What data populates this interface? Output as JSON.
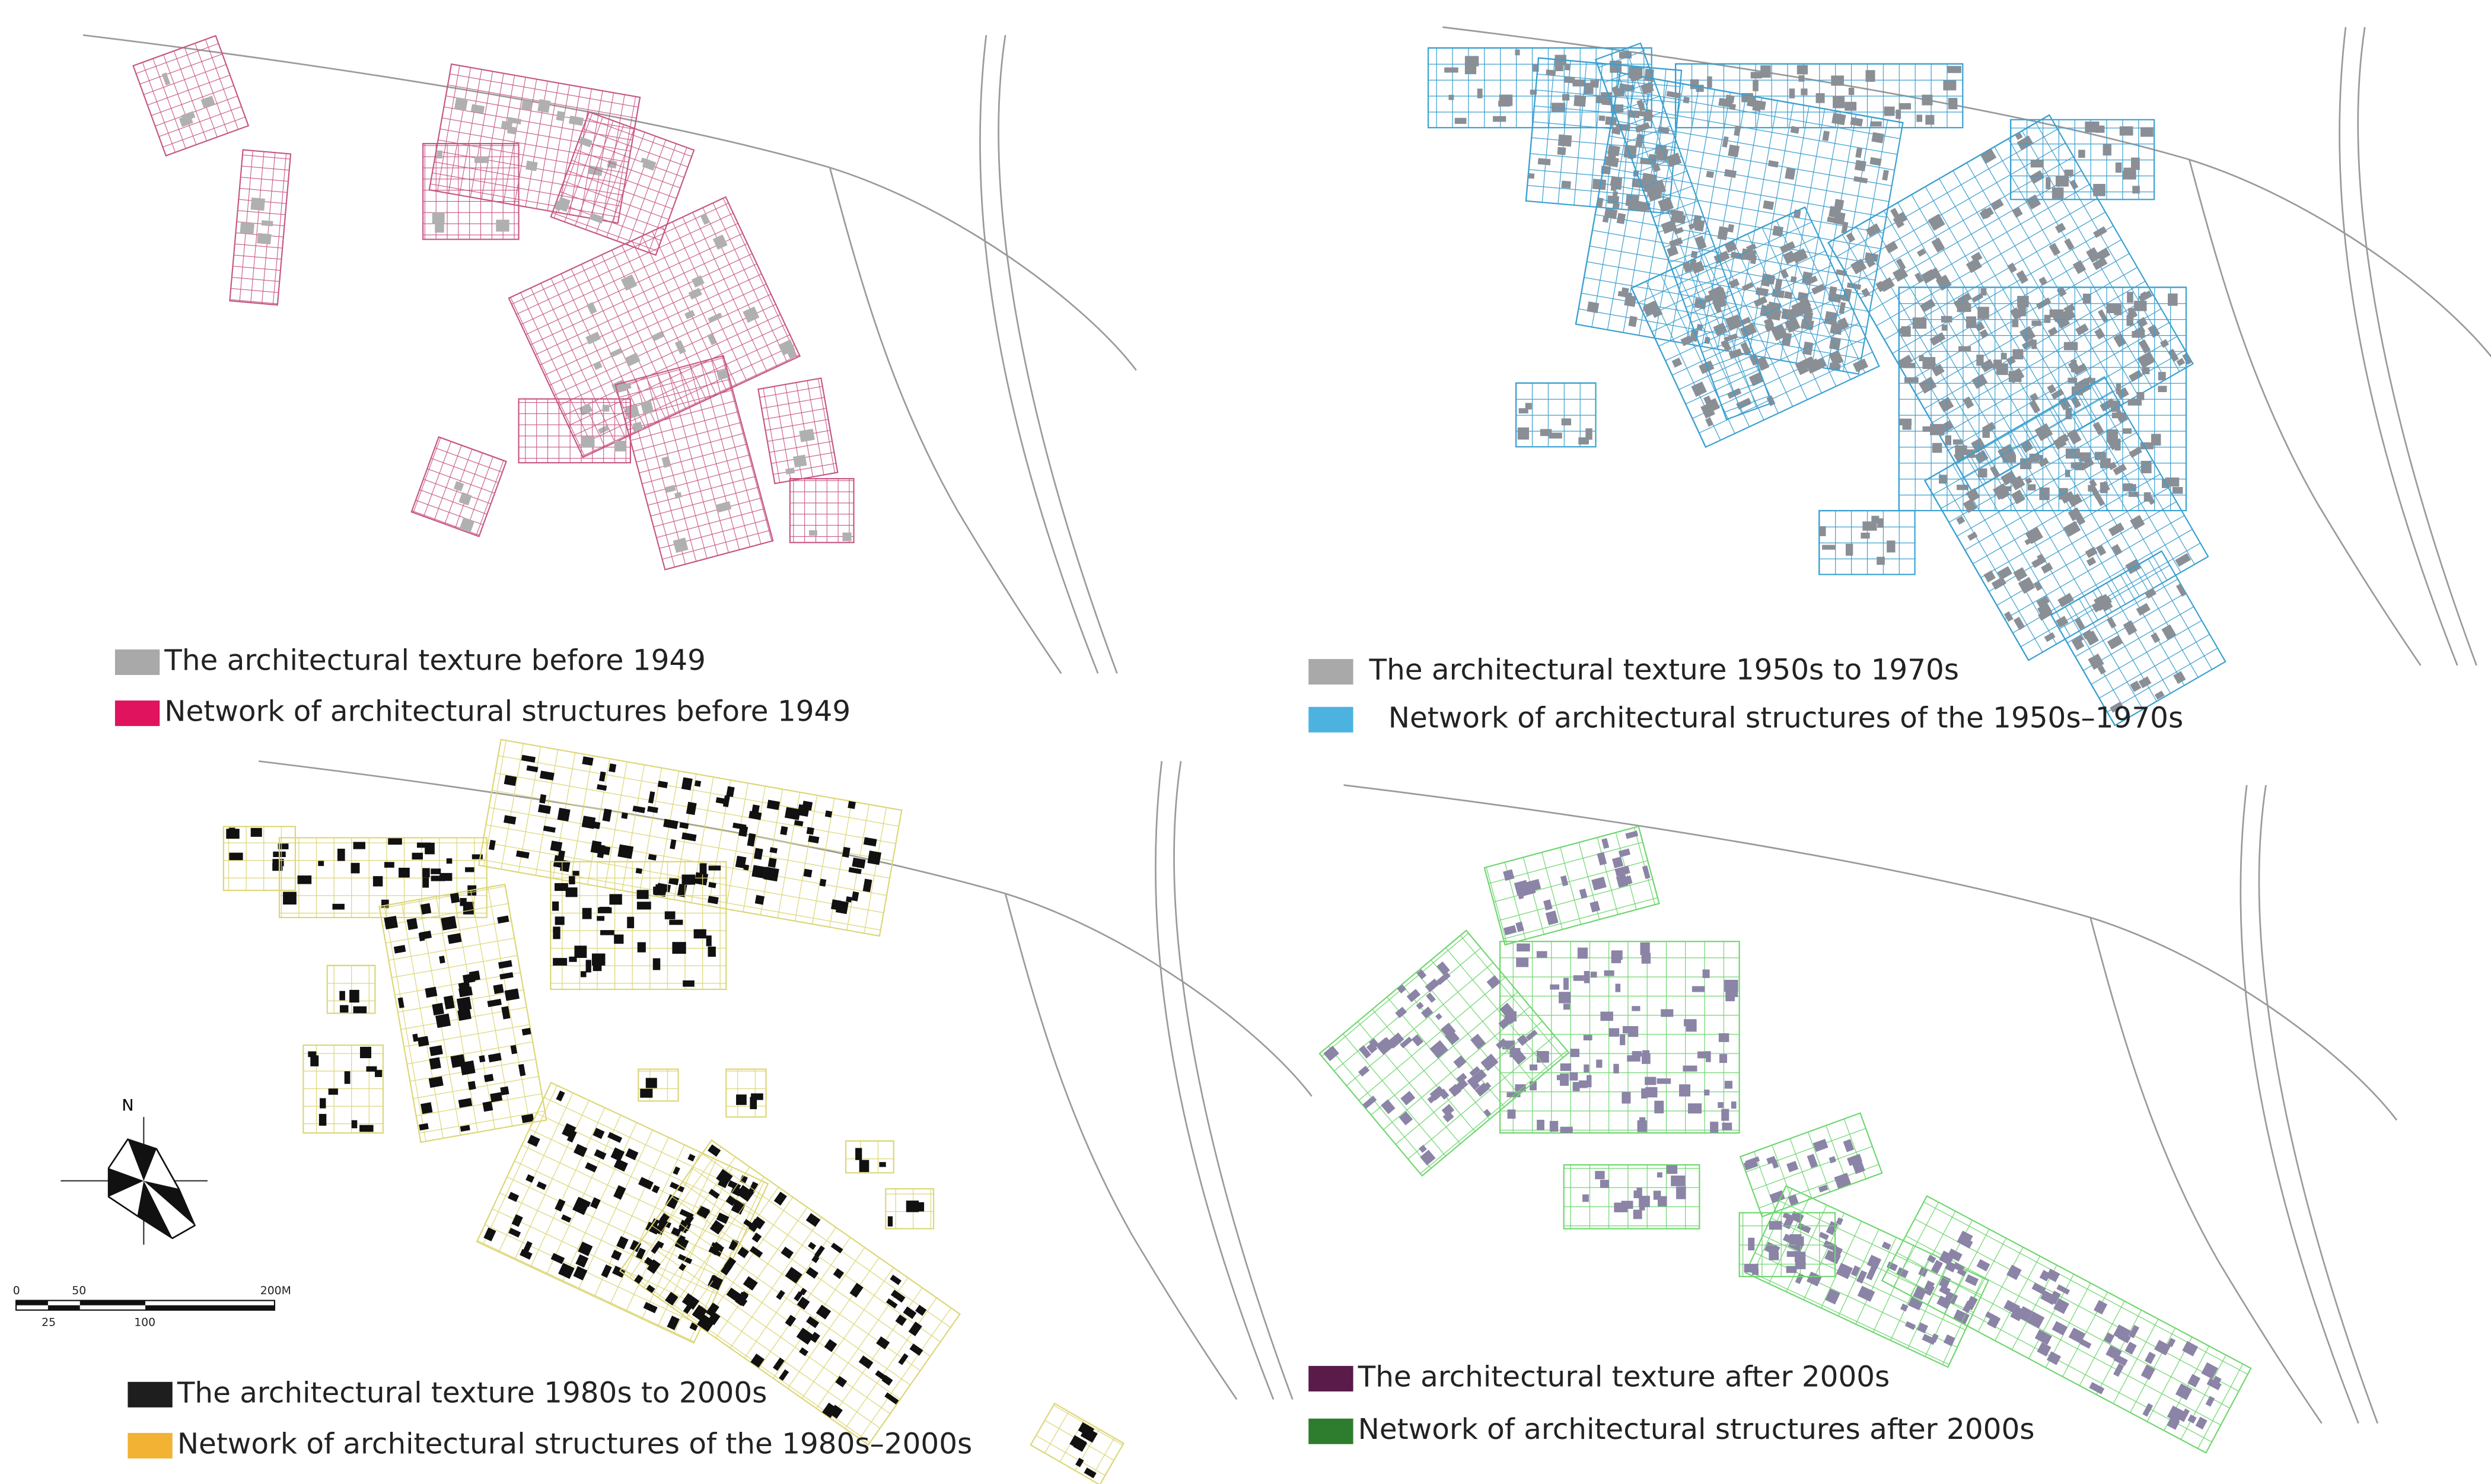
{
  "panels": [
    {
      "legend": [
        {
          "label": "The architectural texture before 1949",
          "color": "#a9a9a9"
        },
        {
          "label": "Network of architectural structures before 1949",
          "color": "#e0135f"
        }
      ]
    },
    {
      "legend": [
        {
          "label": "The architectural texture 1950s to 1970s",
          "color": "#a9a9a9"
        },
        {
          "label": "Network of architectural structures of the 1950s–1970s",
          "color": "#4cb3e0"
        }
      ]
    },
    {
      "legend": [
        {
          "label": "The architectural texture 1980s to 2000s",
          "color": "#1e1e1e"
        },
        {
          "label": "Network of architectural structures of the 1980s–2000s",
          "color": "#f2b233"
        }
      ]
    },
    {
      "legend": [
        {
          "label": "The architectural texture after 2000s",
          "color": "#5a1a4a"
        },
        {
          "label": "Network of architectural structures after 2000s",
          "color": "#2e7d2e"
        }
      ]
    }
  ],
  "north_arrow": {
    "label": "N"
  },
  "scale_bar": {
    "labels": [
      "0",
      "50",
      "200M",
      "25",
      "100"
    ]
  }
}
